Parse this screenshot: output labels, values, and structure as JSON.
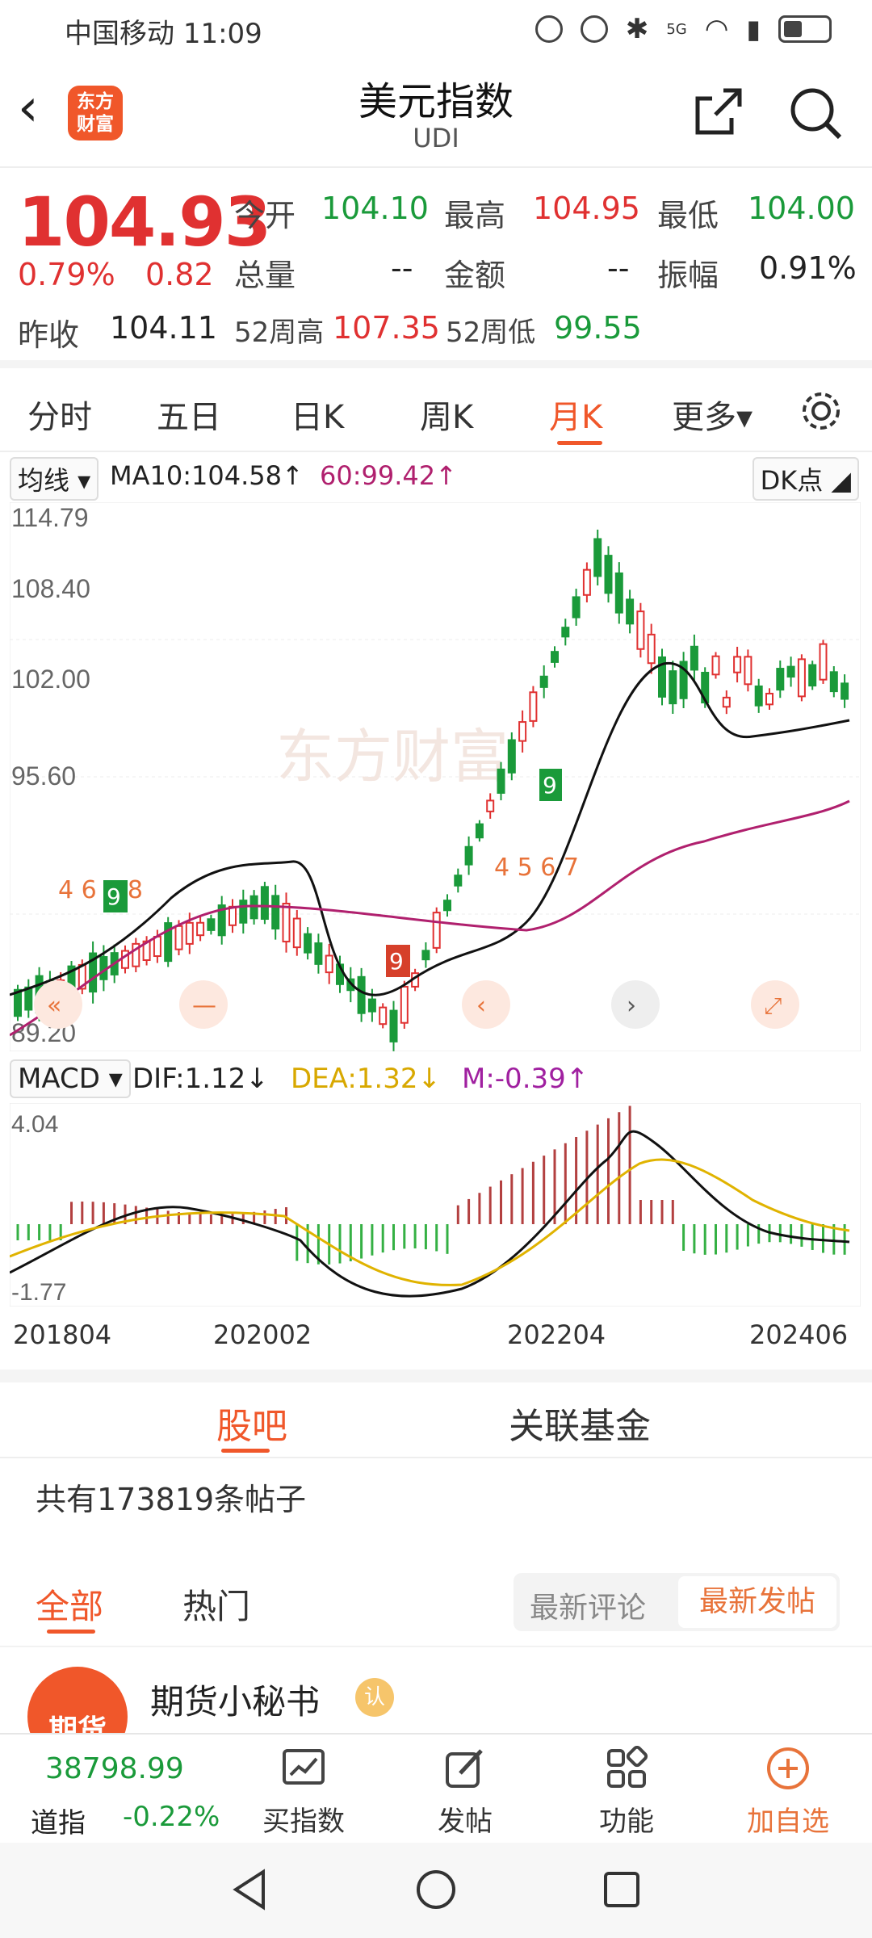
{
  "status_bar": {
    "carrier": "中国移动",
    "time": "11:09",
    "network": "5G"
  },
  "header": {
    "back_icon": "chevron-left-icon",
    "logo_text": "东方财富",
    "title": "美元指数",
    "subtitle": "UDI",
    "share_icon": "share-icon",
    "search_icon": "search-icon"
  },
  "quote": {
    "price": "104.93",
    "change_pct": "0.79%",
    "change": "0.82",
    "prev_close_label": "昨收",
    "prev_close": "104.11",
    "open_label": "今开",
    "open": "104.10",
    "high_label": "最高",
    "high": "104.95",
    "low_label": "最低",
    "low": "104.00",
    "volume_label": "总量",
    "volume": "--",
    "amount_label": "金额",
    "amount": "--",
    "amplitude_label": "振幅",
    "amplitude": "0.91%",
    "w52_high_label": "52周高",
    "w52_high": "107.35",
    "w52_low_label": "52周低",
    "w52_low": "99.55"
  },
  "tabs": [
    "分时",
    "五日",
    "日K",
    "周K",
    "月K",
    "更多▾"
  ],
  "active_tab": "月K",
  "ma_line": {
    "selector": "均线 ▾",
    "ma10": "MA10:104.58↑",
    "ma60": "60:99.42↑",
    "dk": "DK点 ◢"
  },
  "watermark": "东方财富",
  "macd": {
    "selector": "MACD ▾",
    "dif": "DIF:1.12↓",
    "dea": "DEA:1.32↓",
    "m": "M:-0.39↑"
  },
  "x_labels": [
    "201804",
    "202002",
    "202204",
    "202406"
  ],
  "chart_data": {
    "type": "candlestick",
    "title": "",
    "y_ticks": [
      "114.79",
      "108.40",
      "102.00",
      "95.60",
      "89.20"
    ],
    "ylim": [
      89.2,
      114.79
    ],
    "macd_ticks": [
      "4.04",
      "-1.77"
    ],
    "macd_ylim": [
      -1.77,
      4.04
    ],
    "series": [
      {
        "name": "MA10",
        "color": "#111111"
      },
      {
        "name": "60",
        "color": "#b0206e"
      }
    ],
    "colors": {
      "up": "#e03131",
      "down": "#1a9a3a",
      "dif": "#111111",
      "dea": "#e0b300"
    }
  },
  "forum": {
    "tabs": [
      "股吧",
      "关联基金"
    ],
    "active_tab": "股吧",
    "post_count": "共有173819条帖子",
    "sub_tabs": [
      "全部",
      "热门"
    ],
    "active_sub_tab": "全部",
    "sort_options": [
      "最新评论",
      "最新发帖"
    ],
    "active_sort": "最新发帖",
    "first_post_author": "期货小秘书",
    "first_post_avatar_text": "期货"
  },
  "bottom_bar": {
    "index_value": "38798.99",
    "index_name": "道指",
    "index_change": "-0.22%",
    "buttons": [
      {
        "label": "买指数",
        "icon": "chart-icon"
      },
      {
        "label": "发帖",
        "icon": "edit-icon"
      },
      {
        "label": "功能",
        "icon": "apps-icon"
      },
      {
        "label": "加自选",
        "icon": "add-circle-icon"
      }
    ]
  }
}
